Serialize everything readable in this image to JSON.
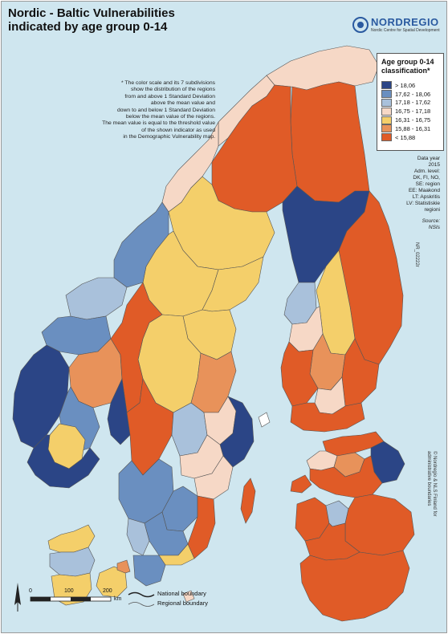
{
  "title": {
    "line1": "Nordic - Baltic Vulnerabilities",
    "line2": "indicated by age group 0-14"
  },
  "logo": {
    "name": "NORDREGIO",
    "subtitle": "Nordic Centre for Spatial Development"
  },
  "note": {
    "lines": [
      "* The color scale and its 7 subdivisions",
      "show the distribution of the regions",
      "from and above 1 Standard Deviation",
      "above the mean value and",
      "down to and below 1 Standard Deviation",
      "below the mean value of the regions.",
      "The mean value is equal to the threshold value",
      "of the shown indicator as used",
      "in the Demographic Vulnerability map."
    ]
  },
  "legend": {
    "title_line1": "Age group 0-14",
    "title_line2": "classification*",
    "items": [
      {
        "label": "> 18,06",
        "color": "#2b4586"
      },
      {
        "label": "17,62 - 18,06",
        "color": "#6a8fc0"
      },
      {
        "label": "17,18 - 17,62",
        "color": "#a9c1db"
      },
      {
        "label": "16,75 - 17,18",
        "color": "#f6d8c6"
      },
      {
        "label": "16,31 - 16,75",
        "color": "#f4cf6a"
      },
      {
        "label": "15,88 - 16,31",
        "color": "#e8925a"
      },
      {
        "label": "< 15,88",
        "color": "#e05b27"
      }
    ]
  },
  "info": {
    "lines": [
      "Data year",
      "2015",
      "Adm. level:",
      "DK, FI, NO,",
      "SE: region",
      "EE: Maakond",
      "LT: Apskritis",
      "LV: Statistiskie",
      "regioni"
    ],
    "source_label": "Source:",
    "source_value": "NSIs"
  },
  "map_code": "NR_02222r",
  "copyright": {
    "line1": "© Nordregio & NLS Finland for",
    "line2": "administrative boundaries"
  },
  "scale": {
    "tick0": "0",
    "tick1": "100",
    "tick2": "200",
    "unit": "km"
  },
  "boundaries": {
    "national": "National boundary",
    "regional": "Regional boundary"
  },
  "colors": {
    "sea": "#cfe6ef",
    "land_outside": "#ffffff",
    "boundary": "#333333"
  }
}
